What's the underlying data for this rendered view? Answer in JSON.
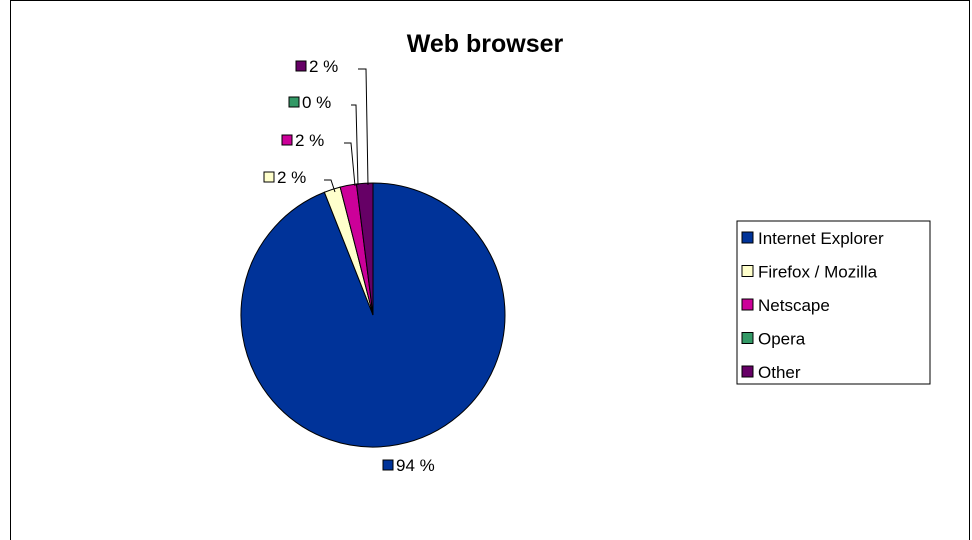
{
  "chart_data": {
    "type": "pie",
    "title": "Web browser",
    "categories": [
      "Internet Explorer",
      "Firefox / Mozilla",
      "Netscape",
      "Opera",
      "Other"
    ],
    "values": [
      94,
      2,
      2,
      0,
      2
    ],
    "data_labels": [
      "94 %",
      "2 %",
      "2 %",
      "0 %",
      "2 %"
    ],
    "colors": [
      "#003399",
      "#ffffcc",
      "#cc0099",
      "#339966",
      "#660066"
    ],
    "legend_position": "right",
    "grid": false
  }
}
